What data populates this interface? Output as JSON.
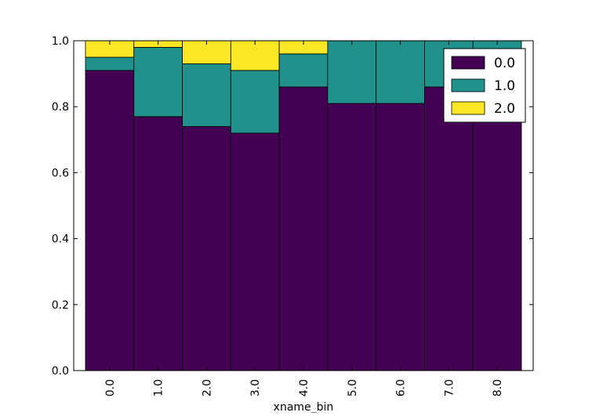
{
  "chart_data": {
    "type": "bar",
    "stacked": true,
    "categories": [
      "0.0",
      "1.0",
      "2.0",
      "3.0",
      "4.0",
      "5.0",
      "6.0",
      "7.0",
      "8.0"
    ],
    "series": [
      {
        "name": "0.0",
        "color": "#440154",
        "values": [
          0.91,
          0.77,
          0.74,
          0.72,
          0.86,
          0.81,
          0.81,
          0.86,
          0.86
        ]
      },
      {
        "name": "1.0",
        "color": "#21918c",
        "values": [
          0.04,
          0.21,
          0.19,
          0.19,
          0.1,
          0.19,
          0.19,
          0.14,
          0.14
        ]
      },
      {
        "name": "2.0",
        "color": "#fde725",
        "values": [
          0.05,
          0.02,
          0.07,
          0.09,
          0.04,
          0.0,
          0.0,
          0.0,
          0.0
        ]
      }
    ],
    "xlabel": "xname_bin",
    "ylabel": "",
    "ylim": [
      0,
      1.0
    ],
    "yticks": [
      "0.0",
      "0.2",
      "0.4",
      "0.6",
      "0.8",
      "1.0"
    ],
    "legend": "top-right",
    "grid": false
  }
}
